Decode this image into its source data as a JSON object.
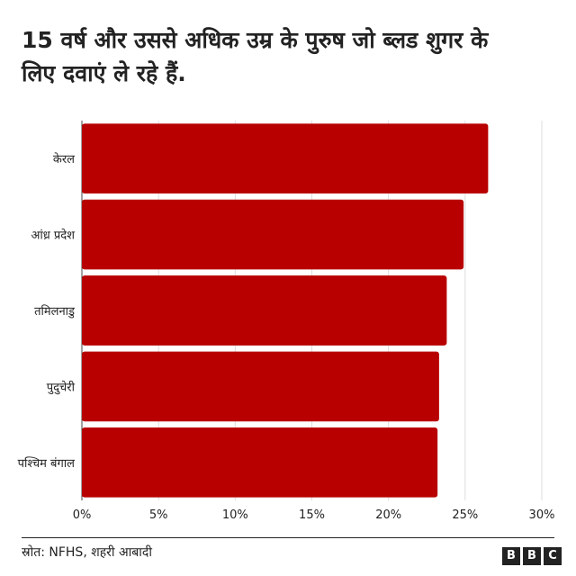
{
  "chart_data": {
    "type": "bar",
    "orientation": "horizontal",
    "title": "15 वर्ष और उससे अधिक उम्र के पुरुष जो ब्लड शुगर के लिए दवाएं ले रहे हैं.",
    "categories": [
      "केरल",
      "आंध्र प्रदेश",
      "तमिलनाडु",
      "पुदुचेरी",
      "पश्चिम बंगाल"
    ],
    "values": [
      26.5,
      24.9,
      23.8,
      23.3,
      23.2
    ],
    "unit": "%",
    "xlim": [
      0,
      30
    ],
    "xticks": [
      "0%",
      "5%",
      "10%",
      "15%",
      "20%",
      "25%",
      "30%"
    ],
    "grid": true,
    "bar_color": "#b80000"
  },
  "source": "स्रोत: NFHS, शहरी आबादी",
  "logo": [
    "B",
    "B",
    "C"
  ]
}
